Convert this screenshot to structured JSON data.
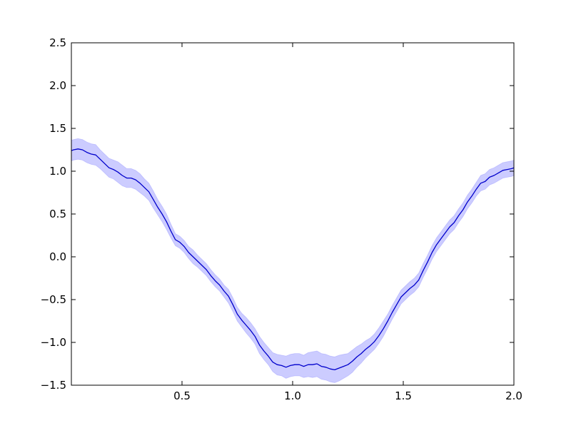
{
  "chart_data": {
    "type": "line",
    "title": "",
    "xlabel": "",
    "ylabel": "",
    "xlim": [
      0.0,
      2.0
    ],
    "ylim": [
      -1.5,
      2.5
    ],
    "grid": false,
    "legend": "none",
    "xticks": [
      0.5,
      1.0,
      1.5,
      2.0
    ],
    "xtick_labels": [
      "0.5",
      "1.0",
      "1.5",
      "2.0"
    ],
    "yticks": [
      -1.5,
      -1.0,
      -0.5,
      0.0,
      0.5,
      1.0,
      1.5,
      2.0,
      2.5
    ],
    "ytick_labels": [
      "−1.5",
      "−1.0",
      "−0.5",
      "0.0",
      "0.5",
      "1.0",
      "1.5",
      "2.0",
      "2.5"
    ],
    "series": [
      {
        "line_color": "#0000cc",
        "band_color": "#9999ff",
        "x": [
          0.0,
          0.01,
          0.03,
          0.05,
          0.07,
          0.09,
          0.11,
          0.13,
          0.15,
          0.17,
          0.19,
          0.21,
          0.23,
          0.25,
          0.27,
          0.29,
          0.31,
          0.33,
          0.35,
          0.37,
          0.39,
          0.41,
          0.43,
          0.45,
          0.47,
          0.49,
          0.51,
          0.53,
          0.55,
          0.57,
          0.59,
          0.61,
          0.63,
          0.65,
          0.67,
          0.69,
          0.71,
          0.73,
          0.75,
          0.77,
          0.79,
          0.81,
          0.83,
          0.85,
          0.87,
          0.89,
          0.91,
          0.93,
          0.95,
          0.97,
          0.99,
          1.01,
          1.03,
          1.05,
          1.07,
          1.09,
          1.11,
          1.13,
          1.15,
          1.17,
          1.19,
          1.21,
          1.23,
          1.25,
          1.27,
          1.29,
          1.31,
          1.33,
          1.35,
          1.37,
          1.39,
          1.41,
          1.43,
          1.45,
          1.47,
          1.49,
          1.51,
          1.53,
          1.55,
          1.57,
          1.59,
          1.61,
          1.63,
          1.65,
          1.67,
          1.69,
          1.71,
          1.73,
          1.75,
          1.77,
          1.79,
          1.81,
          1.83,
          1.85,
          1.87,
          1.89,
          1.91,
          1.93,
          1.95,
          1.97,
          1.99,
          2.0
        ],
        "mean": [
          1.24,
          1.25,
          1.26,
          1.25,
          1.22,
          1.2,
          1.19,
          1.14,
          1.09,
          1.04,
          1.02,
          0.99,
          0.95,
          0.92,
          0.92,
          0.9,
          0.86,
          0.81,
          0.76,
          0.67,
          0.58,
          0.5,
          0.41,
          0.3,
          0.2,
          0.17,
          0.12,
          0.05,
          0.0,
          -0.05,
          -0.1,
          -0.15,
          -0.22,
          -0.28,
          -0.33,
          -0.4,
          -0.46,
          -0.56,
          -0.67,
          -0.74,
          -0.8,
          -0.86,
          -0.93,
          -1.03,
          -1.1,
          -1.16,
          -1.23,
          -1.26,
          -1.27,
          -1.29,
          -1.27,
          -1.26,
          -1.26,
          -1.28,
          -1.26,
          -1.26,
          -1.25,
          -1.28,
          -1.29,
          -1.31,
          -1.32,
          -1.3,
          -1.28,
          -1.26,
          -1.22,
          -1.17,
          -1.13,
          -1.08,
          -1.04,
          -0.99,
          -0.92,
          -0.84,
          -0.75,
          -0.65,
          -0.56,
          -0.47,
          -0.42,
          -0.37,
          -0.33,
          -0.27,
          -0.16,
          -0.06,
          0.05,
          0.14,
          0.21,
          0.28,
          0.35,
          0.4,
          0.48,
          0.55,
          0.64,
          0.71,
          0.79,
          0.86,
          0.88,
          0.93,
          0.95,
          0.98,
          1.01,
          1.02,
          1.03,
          1.04
        ],
        "lower": [
          1.12,
          1.13,
          1.14,
          1.13,
          1.1,
          1.08,
          1.07,
          1.03,
          0.98,
          0.93,
          0.91,
          0.87,
          0.83,
          0.81,
          0.81,
          0.79,
          0.75,
          0.71,
          0.66,
          0.57,
          0.49,
          0.41,
          0.32,
          0.22,
          0.13,
          0.1,
          0.05,
          -0.02,
          -0.08,
          -0.12,
          -0.17,
          -0.22,
          -0.29,
          -0.35,
          -0.4,
          -0.47,
          -0.54,
          -0.64,
          -0.75,
          -0.82,
          -0.89,
          -0.95,
          -1.02,
          -1.13,
          -1.2,
          -1.26,
          -1.34,
          -1.38,
          -1.39,
          -1.42,
          -1.4,
          -1.39,
          -1.39,
          -1.41,
          -1.4,
          -1.41,
          -1.4,
          -1.43,
          -1.44,
          -1.46,
          -1.47,
          -1.45,
          -1.42,
          -1.39,
          -1.35,
          -1.29,
          -1.24,
          -1.18,
          -1.13,
          -1.08,
          -1.01,
          -0.93,
          -0.83,
          -0.73,
          -0.64,
          -0.55,
          -0.5,
          -0.45,
          -0.41,
          -0.35,
          -0.24,
          -0.14,
          -0.03,
          0.06,
          0.13,
          0.2,
          0.27,
          0.32,
          0.4,
          0.47,
          0.56,
          0.63,
          0.71,
          0.77,
          0.79,
          0.84,
          0.86,
          0.89,
          0.92,
          0.93,
          0.94,
          0.95
        ],
        "upper": [
          1.36,
          1.37,
          1.38,
          1.37,
          1.34,
          1.32,
          1.31,
          1.25,
          1.2,
          1.15,
          1.13,
          1.11,
          1.07,
          1.03,
          1.03,
          1.01,
          0.97,
          0.91,
          0.86,
          0.77,
          0.67,
          0.59,
          0.5,
          0.38,
          0.27,
          0.24,
          0.19,
          0.12,
          0.08,
          0.02,
          -0.03,
          -0.08,
          -0.15,
          -0.21,
          -0.26,
          -0.33,
          -0.38,
          -0.48,
          -0.59,
          -0.66,
          -0.71,
          -0.77,
          -0.84,
          -0.93,
          -1.0,
          -1.06,
          -1.12,
          -1.14,
          -1.15,
          -1.16,
          -1.14,
          -1.13,
          -1.13,
          -1.15,
          -1.12,
          -1.11,
          -1.1,
          -1.13,
          -1.14,
          -1.16,
          -1.17,
          -1.15,
          -1.14,
          -1.13,
          -1.09,
          -1.05,
          -1.02,
          -0.98,
          -0.95,
          -0.9,
          -0.83,
          -0.75,
          -0.67,
          -0.57,
          -0.48,
          -0.39,
          -0.34,
          -0.29,
          -0.25,
          -0.19,
          -0.08,
          0.02,
          0.13,
          0.22,
          0.29,
          0.36,
          0.43,
          0.48,
          0.56,
          0.63,
          0.72,
          0.79,
          0.87,
          0.95,
          0.97,
          1.02,
          1.04,
          1.07,
          1.1,
          1.11,
          1.12,
          1.13
        ]
      }
    ]
  }
}
